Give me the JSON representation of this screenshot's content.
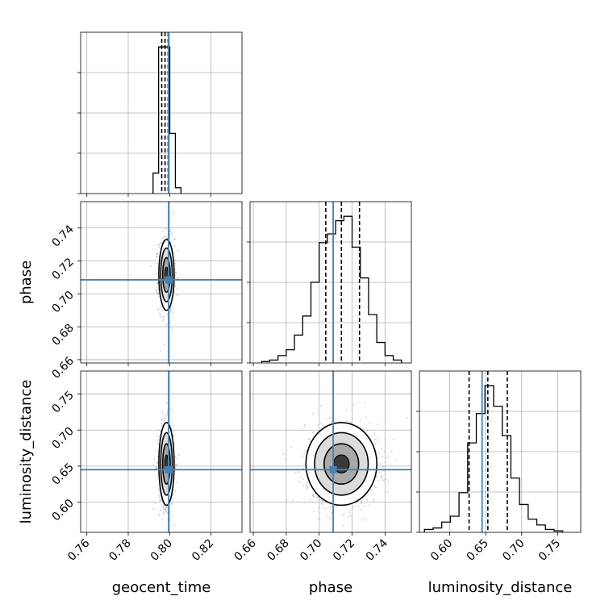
{
  "chart_data": {
    "type": "corner",
    "parameters": [
      "geocent_time",
      "phase",
      "luminosity_distance"
    ],
    "axis_labels": [
      "geocent_time",
      "phase",
      "luminosity_distance"
    ],
    "truth_color": "#4682b4",
    "hist_color": "#000000",
    "grid": true,
    "ranges": {
      "geocent_time": [
        0.757,
        0.835
      ],
      "phase": [
        0.658,
        0.756
      ],
      "luminosity_distance": [
        0.558,
        0.782
      ]
    },
    "ticks": {
      "geocent_time": [
        "0.76",
        "0.78",
        "0.80",
        "0.82"
      ],
      "phase": [
        "0.66",
        "0.68",
        "0.70",
        "0.72",
        "0.74"
      ],
      "luminosity_distance": [
        "0.60",
        "0.65",
        "0.70",
        "0.75"
      ]
    },
    "truths": {
      "geocent_time": 0.7995,
      "phase": 0.7085,
      "luminosity_distance": 0.645
    },
    "quantiles": {
      "geocent_time": [
        0.7962,
        0.7978,
        0.7993
      ],
      "phase": [
        0.704,
        0.7135,
        0.7245
      ],
      "luminosity_distance": [
        0.627,
        0.653,
        0.68
      ]
    },
    "marginals": {
      "geocent_time": {
        "edges": [
          0.792,
          0.7947,
          0.7974,
          0.8001,
          0.8028,
          0.8055
        ],
        "counts": [
          0.14,
          1.0,
          1.0,
          0.41,
          0.04
        ]
      },
      "phase": {
        "edges": [
          0.665,
          0.67,
          0.675,
          0.68,
          0.685,
          0.69,
          0.695,
          0.7,
          0.705,
          0.71,
          0.715,
          0.72,
          0.725,
          0.73,
          0.735,
          0.74,
          0.745,
          0.75
        ],
        "counts": [
          0.01,
          0.02,
          0.05,
          0.09,
          0.19,
          0.32,
          0.55,
          0.82,
          0.88,
          0.97,
          1.0,
          0.79,
          0.58,
          0.33,
          0.14,
          0.05,
          0.02
        ]
      },
      "luminosity_distance": {
        "edges": [
          0.565,
          0.577,
          0.589,
          0.601,
          0.613,
          0.625,
          0.637,
          0.649,
          0.661,
          0.673,
          0.685,
          0.697,
          0.709,
          0.721,
          0.733,
          0.745,
          0.757
        ],
        "counts": [
          0.02,
          0.03,
          0.07,
          0.11,
          0.27,
          0.61,
          0.81,
          1.0,
          0.86,
          0.66,
          0.37,
          0.19,
          0.09,
          0.05,
          0.02,
          0.01
        ]
      }
    },
    "joint": [
      {
        "x": "geocent_time",
        "y": "phase",
        "center": [
          0.7985,
          0.7115
        ],
        "sigma": [
          0.0018,
          0.0105
        ],
        "rho": 0.0
      },
      {
        "x": "geocent_time",
        "y": "luminosity_distance",
        "center": [
          0.7985,
          0.653
        ],
        "sigma": [
          0.0018,
          0.028
        ],
        "rho": 0.0
      },
      {
        "x": "phase",
        "y": "luminosity_distance",
        "center": [
          0.7135,
          0.653
        ],
        "sigma": [
          0.0105,
          0.028
        ],
        "rho": 0.0
      }
    ]
  }
}
